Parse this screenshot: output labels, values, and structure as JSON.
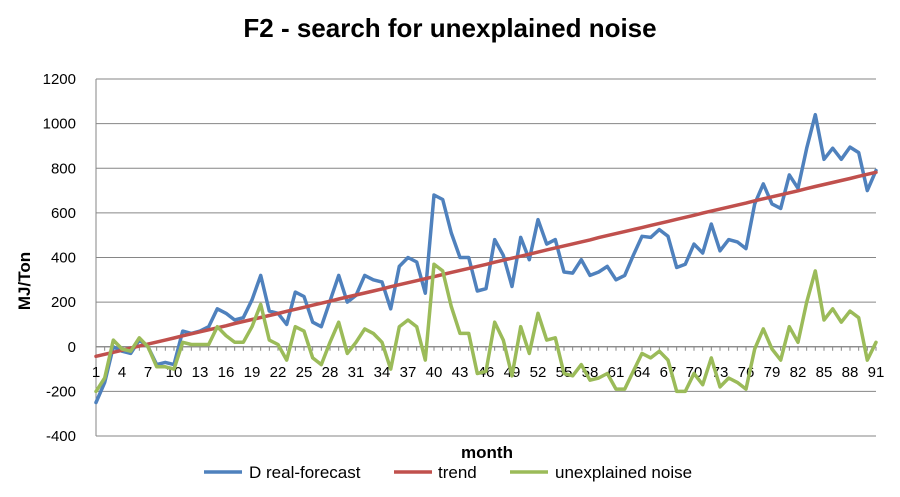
{
  "chart_data": {
    "type": "line",
    "title": "F2 - search for unexplained noise",
    "xlabel": "month",
    "ylabel": "MJ/Ton",
    "ylim": [
      -400,
      1200
    ],
    "yticks": [
      -400,
      -200,
      0,
      200,
      400,
      600,
      800,
      1000,
      1200
    ],
    "xlim": [
      1,
      91
    ],
    "xticks": [
      1,
      4,
      7,
      10,
      13,
      16,
      19,
      22,
      25,
      28,
      31,
      34,
      37,
      40,
      43,
      46,
      49,
      52,
      55,
      58,
      61,
      64,
      67,
      70,
      73,
      76,
      79,
      82,
      85,
      88,
      91
    ],
    "grid": "horizontal",
    "legend_position": "bottom",
    "colors": {
      "d_real_forecast": "#4f81bd",
      "trend": "#c0504d",
      "unexplained_noise": "#9bbb59",
      "grid": "#868686"
    },
    "series": [
      {
        "name": "D real-forecast",
        "color": "#4f81bd",
        "values": [
          -250,
          -160,
          0,
          -20,
          -30,
          30,
          0,
          -80,
          -70,
          -80,
          70,
          60,
          70,
          90,
          170,
          150,
          120,
          130,
          210,
          320,
          160,
          150,
          100,
          245,
          225,
          110,
          90,
          205,
          320,
          200,
          230,
          320,
          300,
          290,
          170,
          360,
          400,
          380,
          240,
          680,
          660,
          510,
          400,
          400,
          250,
          260,
          480,
          410,
          270,
          490,
          390,
          570,
          460,
          480,
          335,
          330,
          390,
          320,
          335,
          360,
          300,
          320,
          410,
          495,
          490,
          525,
          495,
          355,
          370,
          460,
          420,
          550,
          430,
          480,
          470,
          440,
          640,
          730,
          640,
          620,
          770,
          710,
          890,
          1040,
          840,
          890,
          840,
          895,
          870,
          700,
          790
        ]
      },
      {
        "name": "trend",
        "color": "#c0504d",
        "values": [
          -43,
          -34,
          -25,
          -16,
          -6,
          3,
          12,
          21,
          30,
          39,
          49,
          58,
          67,
          76,
          85,
          94,
          104,
          113,
          122,
          131,
          140,
          149,
          159,
          168,
          177,
          186,
          195,
          204,
          214,
          223,
          232,
          241,
          250,
          259,
          269,
          278,
          287,
          296,
          305,
          314,
          324,
          333,
          342,
          351,
          360,
          369,
          379,
          388,
          397,
          406,
          415,
          424,
          434,
          443,
          452,
          461,
          470,
          479,
          489,
          498,
          507,
          516,
          525,
          534,
          544,
          553,
          562,
          571,
          580,
          589,
          599,
          608,
          617,
          626,
          635,
          644,
          654,
          663,
          672,
          681,
          690,
          699,
          709,
          718,
          727,
          736,
          745,
          754,
          764,
          773,
          782
        ]
      },
      {
        "name": "unexplained noise",
        "color": "#9bbb59",
        "values": [
          -200,
          -140,
          30,
          -10,
          -20,
          40,
          0,
          -90,
          -90,
          -100,
          20,
          10,
          10,
          10,
          90,
          50,
          20,
          20,
          90,
          190,
          30,
          10,
          -60,
          90,
          70,
          -50,
          -80,
          20,
          110,
          -30,
          20,
          80,
          60,
          20,
          -100,
          90,
          120,
          90,
          -60,
          370,
          340,
          180,
          60,
          60,
          -120,
          -110,
          110,
          30,
          -130,
          90,
          -30,
          150,
          30,
          40,
          -120,
          -130,
          -80,
          -150,
          -140,
          -120,
          -190,
          -190,
          -110,
          -30,
          -50,
          -20,
          -60,
          -200,
          -200,
          -120,
          -170,
          -50,
          -180,
          -140,
          -160,
          -190,
          -10,
          80,
          -10,
          -60,
          90,
          20,
          200,
          340,
          120,
          170,
          110,
          160,
          130,
          -60,
          20
        ]
      }
    ]
  }
}
